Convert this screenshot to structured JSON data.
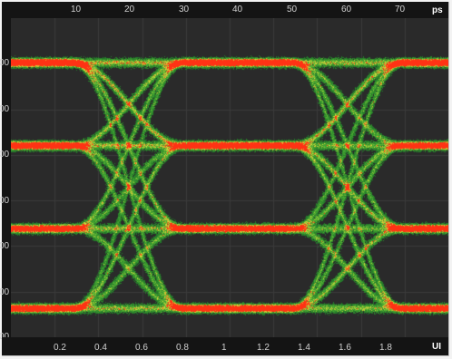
{
  "top_axis": {
    "unit": "ps",
    "ticks": [
      "10",
      "20",
      "30",
      "40",
      "50",
      "60",
      "70"
    ]
  },
  "bottom_axis": {
    "unit": "UI",
    "ticks": [
      "0.2",
      "0.4",
      "0.6",
      "0.8",
      "1",
      "1.2",
      "1.4",
      "1.6",
      "1.8"
    ]
  },
  "left_axis": {
    "ticks": [
      "00",
      "00",
      "00",
      "00",
      "00",
      "00",
      "00"
    ]
  },
  "colors": {
    "background": "#2a2a2a",
    "low_density": "#2e9a3a",
    "mid_density": "#c8d84a",
    "high_density": "#ff3a1a",
    "grid": "#3a3a3a"
  },
  "plot_type": "PAM4 eye diagram density"
}
